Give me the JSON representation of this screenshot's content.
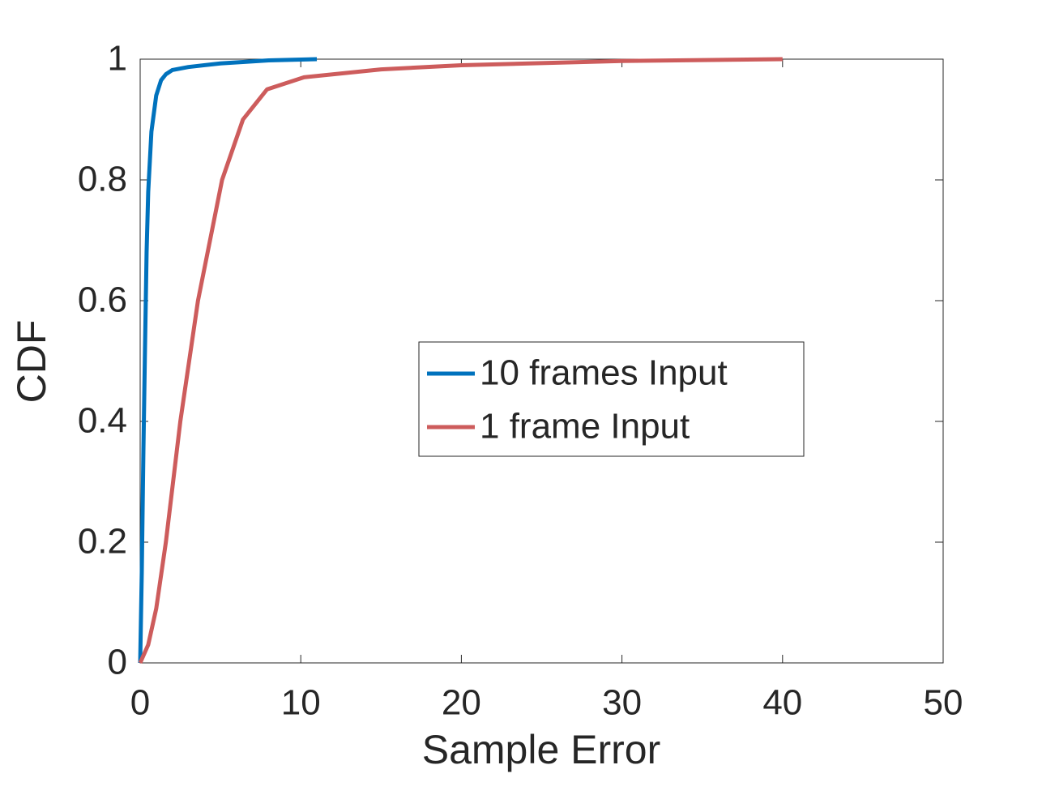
{
  "chart_data": {
    "type": "line",
    "xlabel": "Sample Error",
    "ylabel": "CDF",
    "xlim": [
      0,
      50
    ],
    "xticks": [
      0,
      10,
      20,
      30,
      40,
      50
    ],
    "ylim": [
      0,
      1
    ],
    "yticks": [
      0,
      0.2,
      0.4,
      0.6,
      0.8,
      1
    ],
    "legend": "center-right",
    "series": [
      {
        "name": "10 frames Input",
        "color": "#0072bd",
        "x": [
          0,
          0.1,
          0.2,
          0.3,
          0.4,
          0.5,
          0.7,
          1.0,
          1.3,
          1.6,
          2,
          3,
          5,
          8,
          11
        ],
        "values": [
          0,
          0.15,
          0.35,
          0.52,
          0.68,
          0.78,
          0.88,
          0.94,
          0.965,
          0.975,
          0.982,
          0.987,
          0.993,
          0.998,
          1.0
        ]
      },
      {
        "name": "1 frame Input",
        "color": "#cd5c5c",
        "x": [
          0,
          0.5,
          1,
          1.6,
          2.5,
          3.6,
          5.1,
          6.4,
          7.9,
          10.2,
          15,
          20,
          30,
          40
        ],
        "values": [
          0,
          0.03,
          0.09,
          0.2,
          0.4,
          0.6,
          0.8,
          0.9,
          0.95,
          0.97,
          0.983,
          0.99,
          0.997,
          1.0
        ]
      }
    ]
  }
}
